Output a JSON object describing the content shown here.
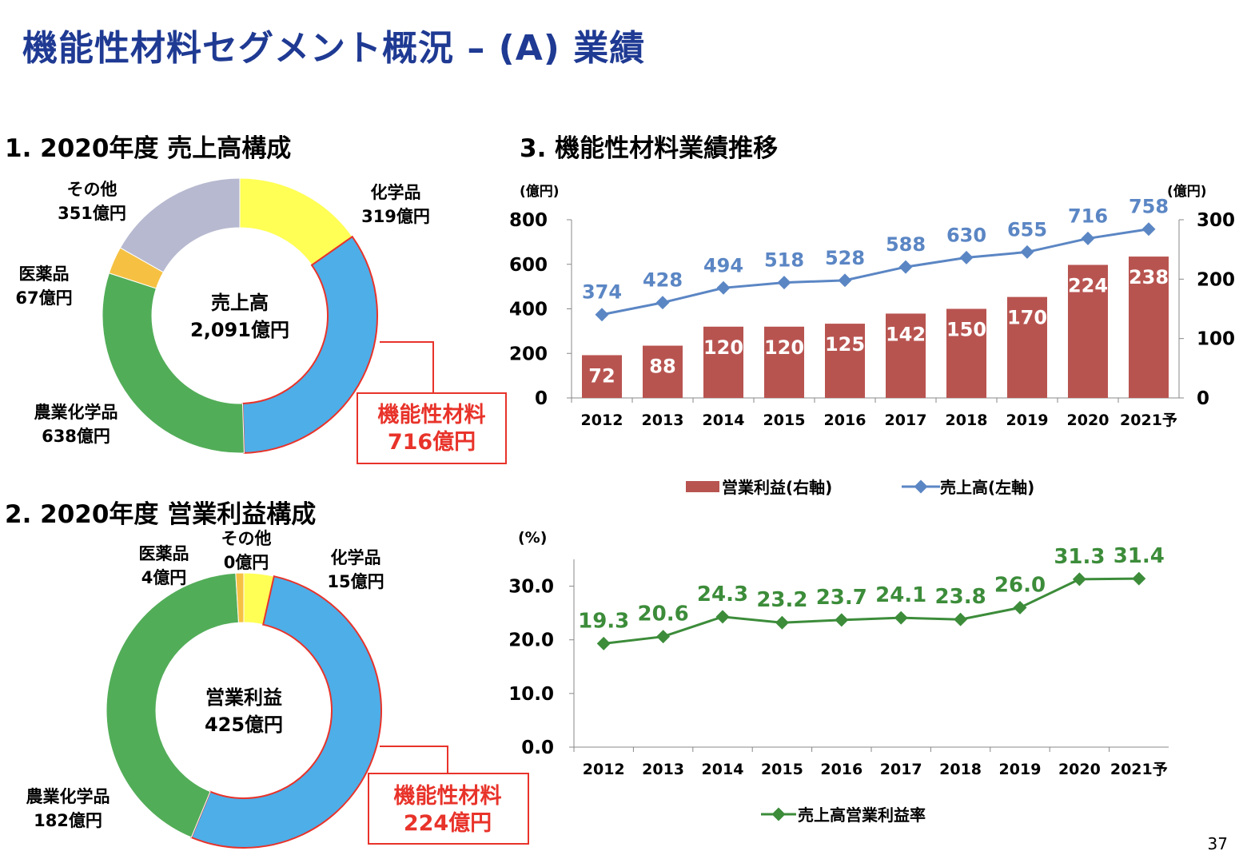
{
  "page": {
    "title": "機能性材料セグメント概況 – (A) 業績",
    "page_number": "37"
  },
  "sections": {
    "s1": "1. 2020年度 売上高構成",
    "s2": "2. 2020年度 営業利益構成",
    "s3": "3. 機能性材料業績推移"
  },
  "colors": {
    "title": "#1f3a93",
    "functional": "#4eaee8",
    "chemical": "#ffff55",
    "pharma": "#f6c142",
    "agro": "#52ad58",
    "other": "#b7b9d0",
    "highlight": "#e8332a",
    "bar": "#b85450",
    "sales_line": "#5b86c4",
    "margin_line": "#3c8c3a"
  },
  "chart_data": [
    {
      "type": "pie",
      "variant": "donut",
      "center_label_1": "売上高",
      "center_label_2": "2,091億円",
      "unit": "億円",
      "slices": [
        {
          "key": "chemical",
          "name": "化学品",
          "value": 319,
          "label": "319億円",
          "color": "#ffff55"
        },
        {
          "key": "functional",
          "name": "機能性材料",
          "value": 716,
          "label": "716億円",
          "color": "#4eaee8",
          "highlight": true
        },
        {
          "key": "agro",
          "name": "農業化学品",
          "value": 638,
          "label": "638億円",
          "color": "#52ad58"
        },
        {
          "key": "pharma",
          "name": "医薬品",
          "value": 67,
          "label": "67億円",
          "color": "#f6c142"
        },
        {
          "key": "other",
          "name": "その他",
          "value": 351,
          "label": "351億円",
          "color": "#b7b9d0"
        }
      ]
    },
    {
      "type": "pie",
      "variant": "donut",
      "center_label_1": "営業利益",
      "center_label_2": "425億円",
      "unit": "億円",
      "slices": [
        {
          "key": "other",
          "name": "その他",
          "value": 0,
          "label": "0億円",
          "color": "#b7b9d0"
        },
        {
          "key": "chemical",
          "name": "化学品",
          "value": 15,
          "label": "15億円",
          "color": "#ffff55"
        },
        {
          "key": "functional",
          "name": "機能性材料",
          "value": 224,
          "label": "224億円",
          "color": "#4eaee8",
          "highlight": true
        },
        {
          "key": "agro",
          "name": "農業化学品",
          "value": 182,
          "label": "182億円",
          "color": "#52ad58"
        },
        {
          "key": "pharma",
          "name": "医薬品",
          "value": 4,
          "label": "4億円",
          "color": "#f6c142"
        }
      ]
    },
    {
      "type": "bar",
      "combo": "bar+line",
      "categories": [
        "2012",
        "2013",
        "2014",
        "2015",
        "2016",
        "2017",
        "2018",
        "2019",
        "2020",
        "2021予"
      ],
      "left_axis": {
        "unit": "(億円)",
        "ylim": [
          0,
          800
        ],
        "ticks": [
          0,
          200,
          400,
          600,
          800
        ]
      },
      "right_axis": {
        "unit": "(億円)",
        "ylim": [
          0,
          300
        ],
        "ticks": [
          0,
          100,
          200,
          300
        ]
      },
      "series": [
        {
          "name": "営業利益(右軸)",
          "type": "bar",
          "axis": "right",
          "values": [
            72,
            88,
            120,
            120,
            125,
            142,
            150,
            170,
            224,
            238
          ]
        },
        {
          "name": "売上高(左軸)",
          "type": "line",
          "axis": "left",
          "values": [
            374,
            428,
            494,
            518,
            528,
            588,
            630,
            655,
            716,
            758
          ]
        }
      ]
    },
    {
      "type": "line",
      "categories": [
        "2012",
        "2013",
        "2014",
        "2015",
        "2016",
        "2017",
        "2018",
        "2019",
        "2020",
        "2021予"
      ],
      "y_axis": {
        "unit": "(%)",
        "ylim": [
          0,
          35
        ],
        "ticks": [
          "0.0",
          "10.0",
          "20.0",
          "30.0"
        ]
      },
      "series": [
        {
          "name": "売上高営業利益率",
          "values": [
            19.3,
            20.6,
            24.3,
            23.2,
            23.7,
            24.1,
            23.8,
            26.0,
            31.3,
            31.4
          ]
        }
      ]
    }
  ]
}
